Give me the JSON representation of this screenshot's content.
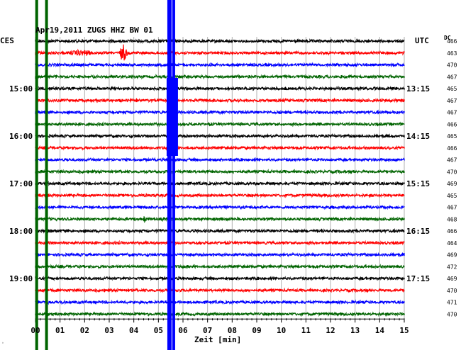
{
  "chart_data": {
    "type": "line",
    "title": "Apr19,2011  ZUGS HHZ BW 01",
    "left_timezone": "CES",
    "right_timezone": "UTC",
    "dc_label": "DC",
    "xlabel": "Zeit [min]",
    "xlim": [
      0,
      15
    ],
    "x_ticks": [
      "00",
      "01",
      "02",
      "03",
      "04",
      "05",
      "06",
      "07",
      "08",
      "09",
      "10",
      "11",
      "12",
      "13",
      "14",
      "15"
    ],
    "left_hour_labels": [
      {
        "row": 4,
        "label": "15:00"
      },
      {
        "row": 8,
        "label": "16:00"
      },
      {
        "row": 12,
        "label": "17:00"
      },
      {
        "row": 16,
        "label": "18:00"
      },
      {
        "row": 20,
        "label": "19:00"
      }
    ],
    "right_hour_labels": [
      {
        "row": 4,
        "label": "13:15"
      },
      {
        "row": 8,
        "label": "14:15"
      },
      {
        "row": 12,
        "label": "15:15"
      },
      {
        "row": 16,
        "label": "16:15"
      },
      {
        "row": 20,
        "label": "17:15"
      }
    ],
    "row_colors": [
      "#000000",
      "#ff0000",
      "#0000ff",
      "#006400"
    ],
    "dc_offsets": [
      466,
      463,
      470,
      467,
      465,
      467,
      467,
      466,
      465,
      466,
      467,
      470,
      469,
      465,
      467,
      468,
      466,
      464,
      469,
      472,
      469,
      470,
      471,
      470
    ],
    "events": [
      {
        "row": 1,
        "start_min": 1.2,
        "end_min": 3.5,
        "amplitude": "moderate"
      },
      {
        "row": 1,
        "start_min": 3.4,
        "end_min": 4.0,
        "amplitude": "large"
      },
      {
        "row": 15,
        "start_min": 4.3,
        "end_min": 4.7,
        "amplitude": "moderate"
      }
    ],
    "grid": true,
    "vertical_disturbances": [
      {
        "x_min": 0.05,
        "color": "#006400",
        "label": "green band"
      },
      {
        "x_min": 0.45,
        "color": "#006400",
        "label": "green band"
      },
      {
        "x_min": 5.45,
        "color": "#0000ff",
        "label": "blue band"
      }
    ]
  }
}
